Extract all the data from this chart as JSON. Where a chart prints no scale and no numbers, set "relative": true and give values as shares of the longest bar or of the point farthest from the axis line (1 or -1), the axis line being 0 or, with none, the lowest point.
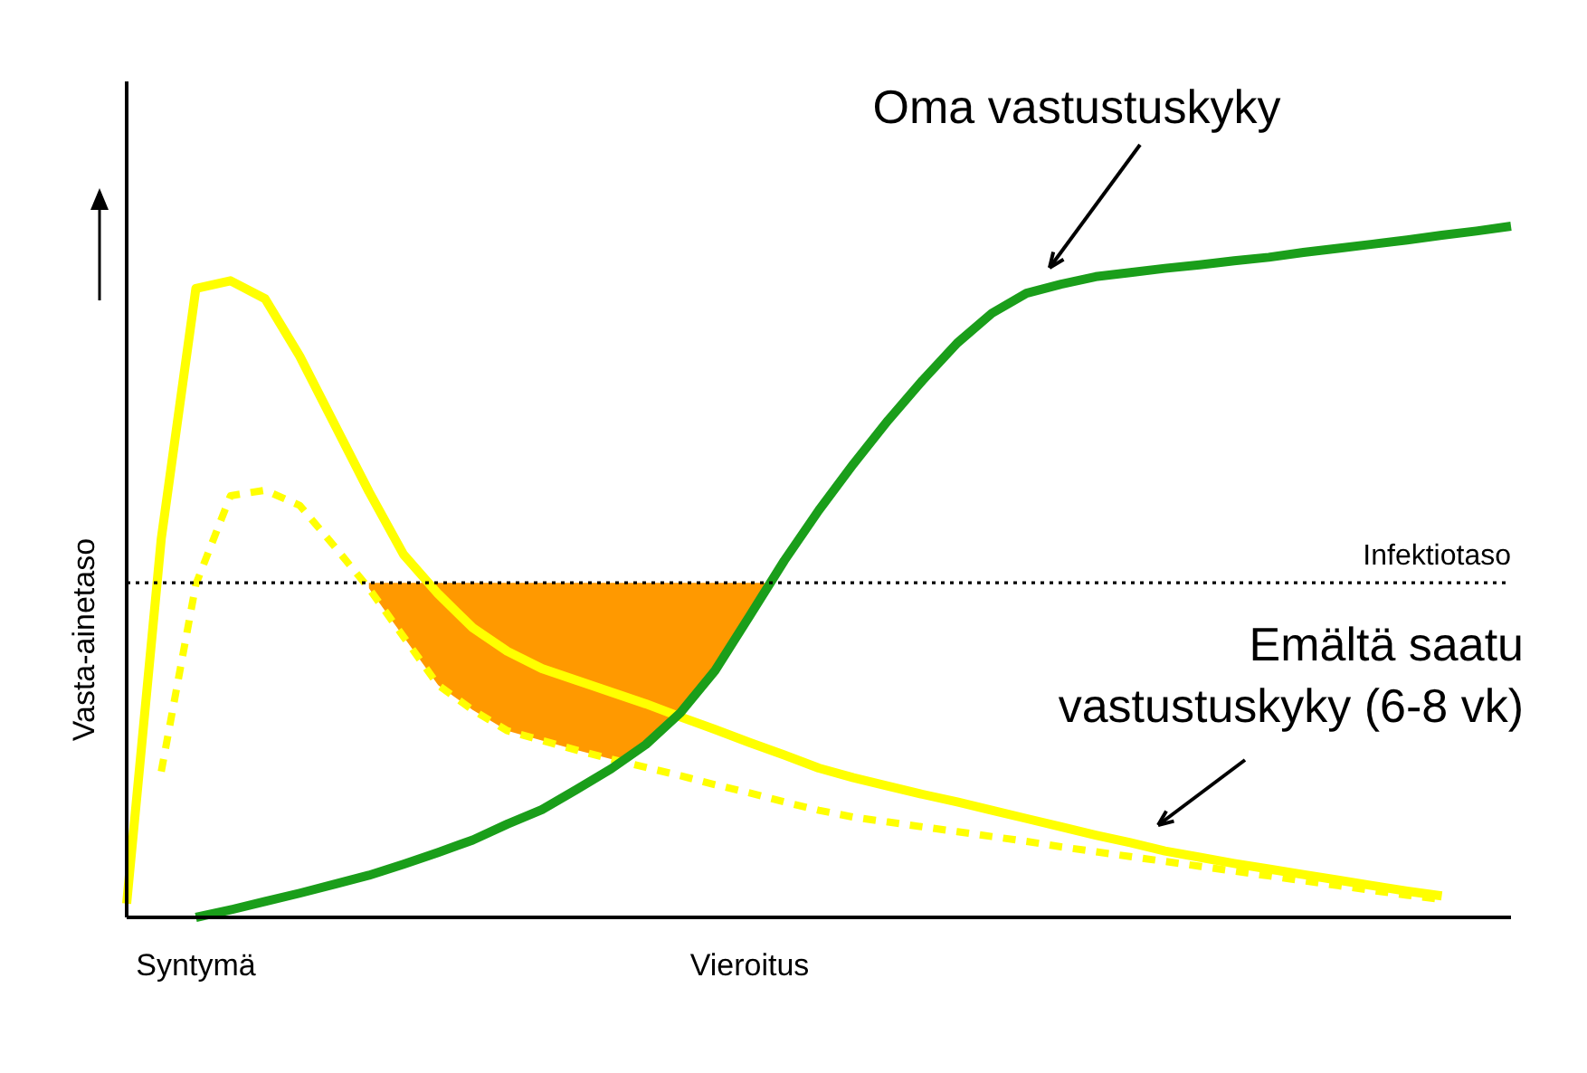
{
  "chart_data": {
    "type": "line",
    "relative": true,
    "ylabel": "Vasta-ainetaso",
    "categories": [
      null,
      null,
      "Syntymä",
      null,
      null,
      null,
      null,
      null,
      null,
      null,
      null,
      null,
      null,
      null,
      null,
      null,
      null,
      null,
      "Vieroitus",
      null,
      null,
      null,
      null,
      null,
      null,
      null,
      null,
      null,
      null,
      null,
      null,
      null,
      null,
      null,
      null,
      null,
      null,
      null,
      null,
      null,
      null
    ],
    "series": [
      {
        "type": "area",
        "color": "#ff9900",
        "values": [
          null,
          null,
          null,
          null,
          null,
          null,
          null,
          0.484,
          0.484,
          0.484,
          0.484,
          0.484,
          0.484,
          0.484,
          0.484,
          0.484,
          0.484,
          0.484,
          0.484,
          0.484,
          null,
          null,
          null,
          null,
          null,
          null,
          null,
          null,
          null,
          null,
          null,
          null,
          null,
          null,
          null,
          null,
          null,
          null,
          null,
          null,
          null
        ]
      },
      {
        "color": "#ffff00",
        "line_style": "dashed",
        "values": [
          null,
          0.211,
          0.482,
          0.61,
          0.618,
          0.596,
          0.537,
          0.476,
          0.406,
          0.336,
          0.3,
          0.27,
          0.256,
          0.242,
          0.229,
          0.217,
          0.205,
          0.192,
          0.18,
          0.167,
          0.155,
          0.145,
          0.138,
          0.131,
          0.124,
          0.117,
          0.11,
          0.102,
          0.095,
          0.088,
          0.081,
          0.074,
          0.067,
          0.06,
          0.053,
          0.046,
          0.039,
          0.032,
          0.026,
          null,
          null
        ]
      },
      {
        "color": "#ffff00",
        "line_style": "solid",
        "values": [
          0.02,
          0.548,
          0.91,
          0.921,
          0.895,
          0.812,
          0.714,
          0.616,
          0.525,
          0.468,
          0.419,
          0.385,
          0.36,
          0.343,
          0.326,
          0.309,
          0.29,
          0.272,
          0.253,
          0.235,
          0.216,
          0.202,
          0.19,
          0.178,
          0.167,
          0.155,
          0.143,
          0.131,
          0.119,
          0.108,
          0.096,
          0.087,
          0.078,
          0.07,
          0.062,
          0.054,
          0.046,
          0.038,
          0.031,
          null,
          null
        ]
      },
      {
        "color": "#1a9e1a",
        "line_style": "solid",
        "values": [
          null,
          null,
          0,
          0.011,
          0.023,
          0.035,
          0.048,
          0.061,
          0.077,
          0.094,
          0.112,
          0.135,
          0.156,
          0.185,
          0.215,
          0.25,
          0.296,
          0.357,
          0.436,
          0.516,
          0.589,
          0.656,
          0.719,
          0.777,
          0.831,
          0.874,
          0.903,
          0.916,
          0.927,
          0.933,
          0.939,
          0.944,
          0.95,
          0.955,
          0.962,
          0.968,
          0.974,
          0.98,
          0.987,
          0.993,
          1
        ]
      }
    ],
    "ref_lines": [
      {
        "axis": "y",
        "value": 0.484,
        "label": "Infektiotaso",
        "color": "#000000",
        "line_style": "dotted"
      }
    ],
    "annotations": [
      "Oma vastustuskyky",
      "Emältä saatu\nvastustuskyky (6-8 vk)"
    ]
  }
}
